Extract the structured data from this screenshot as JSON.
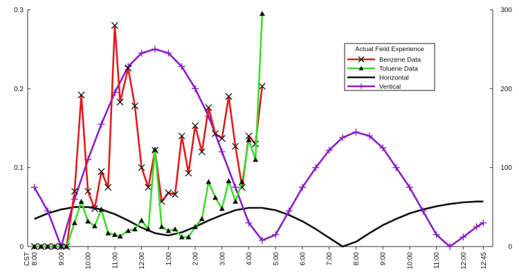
{
  "chart_data": {
    "type": "line",
    "title": "",
    "xlabel": "",
    "ylabel": "",
    "x_tick_labels": [
      "CST\n8:00",
      "9:00",
      "10:00",
      "11:00",
      "12:00",
      "1:00",
      "2:00",
      "3:00",
      "4:00",
      "5:00",
      "6:00",
      "7:00",
      "8:00",
      "9:00",
      "10:00",
      "11:00",
      "12:00",
      "12:45"
    ],
    "x_tick_hours": [
      8,
      9,
      10,
      11,
      12,
      13,
      14,
      15,
      16,
      17,
      18,
      19,
      20,
      21,
      22,
      23,
      24,
      24.75
    ],
    "xlim": [
      7.75,
      25.1
    ],
    "y_left": {
      "lim": [
        0,
        0.3
      ],
      "ticks": [
        "0",
        "0.1",
        "0.2",
        "0.3"
      ],
      "tick_values": [
        0,
        0.1,
        0.2,
        0.3
      ]
    },
    "y_right": {
      "lim": [
        0,
        300
      ],
      "ticks": [
        "0",
        "100",
        "200",
        "300"
      ],
      "tick_values": [
        0,
        100,
        200,
        300
      ]
    },
    "grid": false,
    "legend": {
      "title": "Actual Field Experience",
      "placement": "top-right",
      "entries": [
        "Benzene Data",
        "Toluene Data",
        "Horizontal",
        "Vertical"
      ]
    },
    "series": [
      {
        "name": "Benzene Data",
        "axis": "left",
        "color": "#e31a1c",
        "marker": "x",
        "x": [
          8.0,
          8.25,
          8.5,
          8.75,
          9.0,
          9.2,
          9.5,
          9.75,
          10.0,
          10.25,
          10.5,
          10.75,
          11.0,
          11.2,
          11.5,
          11.75,
          12.0,
          12.25,
          12.5,
          12.75,
          13.0,
          13.25,
          13.5,
          13.75,
          14.0,
          14.25,
          14.5,
          14.75,
          15.0,
          15.25,
          15.5,
          15.75,
          16.0,
          16.25,
          16.5
        ],
        "y": [
          0.0,
          0.0,
          0.0,
          0.0,
          0.0,
          0.0,
          0.07,
          0.192,
          0.07,
          0.048,
          0.095,
          0.075,
          0.28,
          0.183,
          0.226,
          0.178,
          0.1,
          0.075,
          0.122,
          0.057,
          0.068,
          0.066,
          0.14,
          0.093,
          0.153,
          0.12,
          0.176,
          0.143,
          0.137,
          0.19,
          0.127,
          0.075,
          0.14,
          0.13,
          0.203
        ]
      },
      {
        "name": "Toluene Data",
        "axis": "left",
        "color": "#3ddc2e",
        "marker": "triangle",
        "x": [
          8.0,
          8.25,
          8.5,
          8.75,
          9.0,
          9.2,
          9.5,
          9.75,
          10.0,
          10.25,
          10.5,
          10.75,
          11.0,
          11.2,
          11.5,
          11.75,
          12.0,
          12.25,
          12.5,
          12.75,
          13.0,
          13.25,
          13.5,
          13.75,
          14.0,
          14.25,
          14.5,
          14.75,
          15.0,
          15.25,
          15.5,
          15.75,
          16.0,
          16.25,
          16.5
        ],
        "y": [
          0.0,
          0.0,
          0.0,
          0.0,
          0.0,
          0.0,
          0.03,
          0.057,
          0.032,
          0.026,
          0.047,
          0.017,
          0.015,
          0.013,
          0.02,
          0.022,
          0.033,
          0.022,
          0.123,
          0.025,
          0.02,
          0.022,
          0.012,
          0.012,
          0.025,
          0.035,
          0.082,
          0.062,
          0.048,
          0.083,
          0.057,
          0.082,
          0.135,
          0.11,
          0.295
        ]
      },
      {
        "name": "Horizontal",
        "axis": "right",
        "color": "#111111",
        "marker": "none",
        "x": [
          8.0,
          8.5,
          9.0,
          9.5,
          10.0,
          10.5,
          11.0,
          11.5,
          12.0,
          12.5,
          13.0,
          13.5,
          14.0,
          14.5,
          15.0,
          15.5,
          16.0,
          16.5,
          17.0,
          17.5,
          18.0,
          18.5,
          19.0,
          19.5,
          20.0,
          20.5,
          21.0,
          21.5,
          22.0,
          22.5,
          23.0,
          23.5,
          24.0,
          24.5,
          24.75
        ],
        "y": [
          35,
          42,
          47,
          50,
          50,
          47,
          41,
          33,
          24,
          17,
          14,
          18,
          25,
          33,
          40,
          46,
          49,
          49,
          46,
          40,
          32,
          22,
          11,
          0,
          6,
          17,
          27,
          35,
          42,
          47,
          51,
          54,
          56,
          57,
          57
        ]
      },
      {
        "name": "Vertical",
        "axis": "right",
        "color": "#8a1ec7",
        "marker": "plus",
        "x": [
          8.0,
          8.5,
          9.0,
          9.5,
          10.0,
          10.5,
          11.0,
          11.5,
          12.0,
          12.5,
          13.0,
          13.5,
          14.0,
          14.5,
          15.0,
          15.5,
          16.0,
          16.5,
          17.0,
          17.5,
          18.0,
          18.5,
          19.0,
          19.5,
          20.0,
          20.5,
          21.0,
          21.5,
          22.0,
          22.5,
          23.0,
          23.5,
          24.0,
          24.5,
          24.75
        ],
        "y": [
          75,
          45,
          0,
          60,
          110,
          155,
          195,
          228,
          245,
          250,
          245,
          228,
          200,
          165,
          120,
          75,
          30,
          8,
          15,
          45,
          75,
          100,
          122,
          138,
          145,
          140,
          125,
          100,
          75,
          45,
          15,
          0,
          12,
          25,
          30
        ]
      }
    ]
  }
}
